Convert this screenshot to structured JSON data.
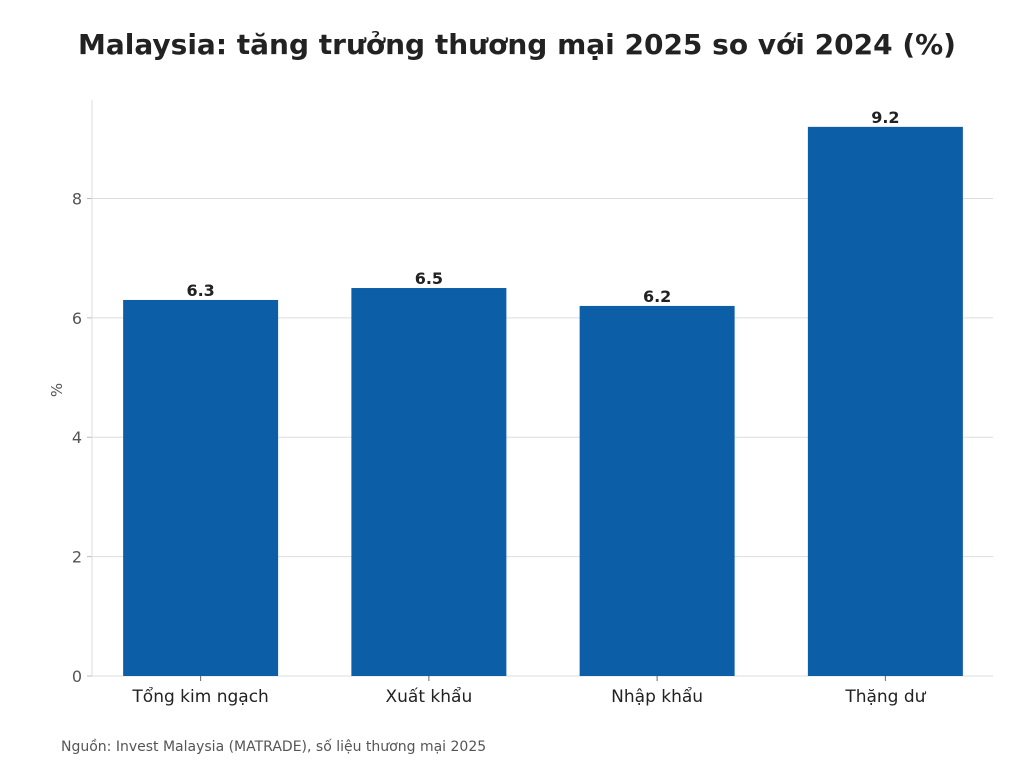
{
  "chart_data": {
    "type": "bar",
    "title": "Malaysia: tăng trưởng thương mại 2025 so với 2024 (%)",
    "xlabel": "",
    "ylabel": "%",
    "categories": [
      "Tổng kim ngạch",
      "Xuất khẩu",
      "Nhập khẩu",
      "Thặng dư"
    ],
    "values": [
      6.3,
      6.5,
      6.2,
      9.2
    ],
    "value_labels": [
      "6.3",
      "6.5",
      "6.2",
      "9.2"
    ],
    "ylim": [
      0,
      9.65
    ],
    "yticks": [
      0,
      2,
      4,
      6,
      8
    ],
    "ytick_labels": [
      "0",
      "2",
      "4",
      "6",
      "8"
    ],
    "grid": "horizontal",
    "bar_color": "#0c5fa6",
    "source": "Nguồn: Invest Malaysia (MATRADE), số liệu thương mại 2025"
  }
}
